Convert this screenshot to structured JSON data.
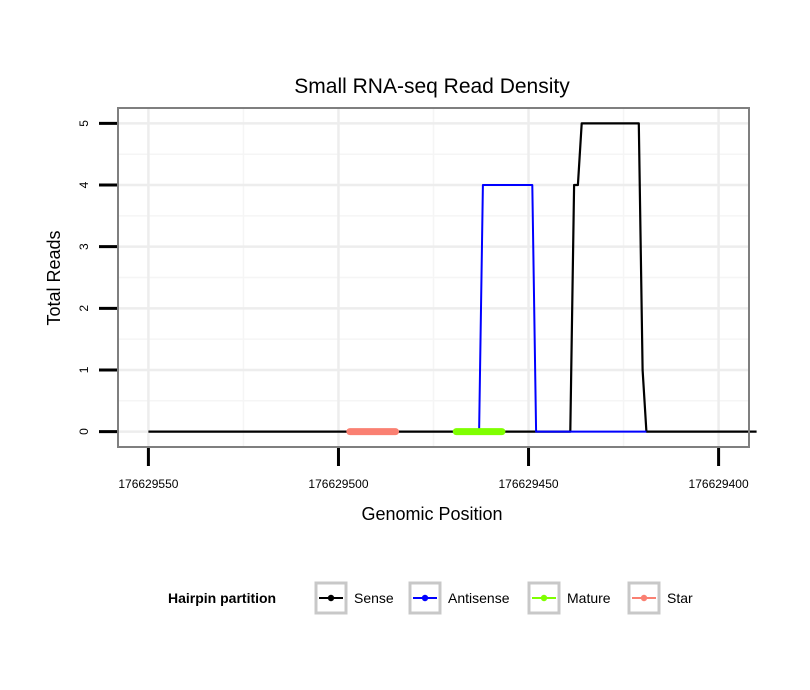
{
  "chart_data": {
    "type": "line",
    "title": "Small RNA-seq Read Density",
    "xlabel": "Genomic Position",
    "ylabel": "Total Reads",
    "xlim": [
      176629392,
      176629558
    ],
    "x_reversed": true,
    "ylim": [
      -0.25,
      5.25
    ],
    "x_ticks": [
      176629550,
      176629500,
      176629450,
      176629400
    ],
    "x_tick_labels": [
      "176629550",
      "176629500",
      "176629450",
      "176629400"
    ],
    "y_ticks": [
      0,
      1,
      2,
      3,
      4,
      5
    ],
    "y_tick_labels": [
      "0",
      "1",
      "2",
      "3",
      "4",
      "5"
    ],
    "grid": true,
    "series": [
      {
        "name": "Sense",
        "color": "#000000",
        "x": [
          176629550,
          176629439,
          176629438,
          176629437,
          176629436,
          176629421,
          176629420,
          176629419,
          176629390
        ],
        "y": [
          0,
          0,
          4,
          4,
          5,
          5,
          1,
          0,
          0
        ]
      },
      {
        "name": "Antisense",
        "color": "#0000ff",
        "x": [
          176629463,
          176629462,
          176629449,
          176629448,
          176629419
        ],
        "y": [
          0,
          4,
          4,
          0,
          0
        ]
      },
      {
        "name": "Mature",
        "color": "#7fff00",
        "x": [
          176629469,
          176629457
        ],
        "y": [
          0,
          0
        ]
      },
      {
        "name": "Star",
        "color": "#fa8072",
        "x": [
          176629497,
          176629485
        ],
        "y": [
          0,
          0
        ]
      }
    ],
    "legend": {
      "title": "Hairpin partition",
      "position": "bottom",
      "entries": [
        "Sense",
        "Antisense",
        "Mature",
        "Star"
      ]
    }
  }
}
